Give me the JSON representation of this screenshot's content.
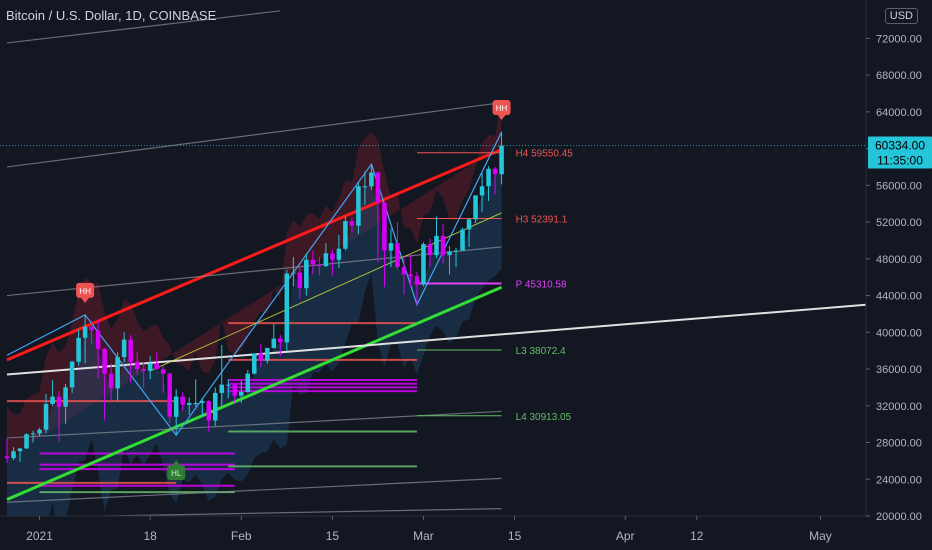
{
  "header": {
    "title": "Bitcoin / U.S. Dollar, 1D, COINBASE",
    "currency": "USD"
  },
  "price_tag": {
    "price": "60334.00",
    "countdown": "11:35:00"
  },
  "colors": {
    "bg": "#131722",
    "up": "#26c6da",
    "down": "#d500f9",
    "red_line": "#ff1a1a",
    "green_line": "#33dd33",
    "white_line": "#e0e0e0",
    "gray_line": "#8a8f99",
    "blue_line": "#42a5f5",
    "yellow_line": "#cddc39",
    "axis_text": "#b2b5be",
    "tag_bg": "#26c6da"
  },
  "markers": [
    {
      "label": "HH",
      "date": "2021-01-08",
      "kind": "high"
    },
    {
      "label": "HH",
      "date": "2021-03-13",
      "kind": "high"
    },
    {
      "label": "HL",
      "date": "2021-01-22",
      "kind": "low"
    }
  ],
  "chart_data": {
    "type": "candlestick",
    "title": "Bitcoin / U.S. Dollar, 1D, COINBASE",
    "x_range": [
      "2020-12-27",
      "2021-05-08"
    ],
    "ylim": [
      20000,
      74000
    ],
    "y_ticks": [
      20000,
      24000,
      28000,
      32000,
      36000,
      40000,
      44000,
      48000,
      52000,
      56000,
      60000,
      64000,
      68000,
      72000
    ],
    "y_tick_labels": [
      "20000.00",
      "24000.00",
      "28000.00",
      "32000.00",
      "36000.00",
      "40000.00",
      "44000.00",
      "48000.00",
      "52000.00",
      "56000.00",
      "60000.00",
      "64000.00",
      "68000.00",
      "72000.00"
    ],
    "x_ticks": [
      {
        "date": "2021-01-01",
        "label": "2021"
      },
      {
        "date": "2021-01-18",
        "label": "18"
      },
      {
        "date": "2021-02-01",
        "label": "Feb"
      },
      {
        "date": "2021-02-15",
        "label": "15"
      },
      {
        "date": "2021-03-01",
        "label": "Mar"
      },
      {
        "date": "2021-03-15",
        "label": "15"
      },
      {
        "date": "2021-04-01",
        "label": "Apr"
      },
      {
        "date": "2021-04-12",
        "label": "12"
      },
      {
        "date": "2021-05-01",
        "label": "May"
      }
    ],
    "last_price": 60334.0,
    "candles": [
      [
        "2020-12-27",
        26500,
        28400,
        25800,
        26300
      ],
      [
        "2020-12-28",
        26300,
        27500,
        26100,
        27050
      ],
      [
        "2020-12-29",
        27050,
        27400,
        25900,
        27350
      ],
      [
        "2020-12-30",
        27350,
        28990,
        27300,
        28900
      ],
      [
        "2020-12-31",
        28900,
        29300,
        28000,
        29000
      ],
      [
        "2021-01-01",
        29000,
        29600,
        28700,
        29400
      ],
      [
        "2021-01-02",
        29400,
        33300,
        29000,
        32200
      ],
      [
        "2021-01-03",
        32200,
        34800,
        32000,
        33000
      ],
      [
        "2021-01-04",
        33000,
        33600,
        28100,
        31900
      ],
      [
        "2021-01-05",
        31900,
        34400,
        30000,
        34000
      ],
      [
        "2021-01-06",
        34000,
        36900,
        33400,
        36800
      ],
      [
        "2021-01-07",
        36800,
        40300,
        36400,
        39400
      ],
      [
        "2021-01-08",
        39400,
        41900,
        36600,
        40600
      ],
      [
        "2021-01-09",
        40600,
        41300,
        38700,
        40200
      ],
      [
        "2021-01-10",
        40200,
        41400,
        35000,
        38200
      ],
      [
        "2021-01-11",
        38200,
        38300,
        30400,
        35500
      ],
      [
        "2021-01-12",
        35500,
        36600,
        32600,
        33900
      ],
      [
        "2021-01-13",
        33900,
        37800,
        32500,
        37300
      ],
      [
        "2021-01-14",
        37300,
        40000,
        36700,
        39200
      ],
      [
        "2021-01-15",
        39200,
        39700,
        34500,
        36800
      ],
      [
        "2021-01-16",
        36800,
        37900,
        35400,
        36000
      ],
      [
        "2021-01-17",
        36000,
        36800,
        33900,
        35800
      ],
      [
        "2021-01-18",
        35800,
        37400,
        34900,
        36600
      ],
      [
        "2021-01-19",
        36600,
        37800,
        35900,
        36000
      ],
      [
        "2021-01-20",
        36000,
        36400,
        33400,
        35500
      ],
      [
        "2021-01-21",
        35500,
        35600,
        30100,
        30800
      ],
      [
        "2021-01-22",
        30800,
        33800,
        28800,
        33000
      ],
      [
        "2021-01-23",
        33000,
        33500,
        31400,
        32100
      ],
      [
        "2021-01-24",
        32100,
        32900,
        31000,
        32300
      ],
      [
        "2021-01-25",
        32300,
        34900,
        31900,
        32300
      ],
      [
        "2021-01-26",
        32300,
        32800,
        30800,
        32500
      ],
      [
        "2021-01-27",
        32500,
        32600,
        29200,
        30400
      ],
      [
        "2021-01-28",
        30400,
        34000,
        29800,
        33400
      ],
      [
        "2021-01-29",
        33400,
        38600,
        31900,
        34300
      ],
      [
        "2021-01-30",
        34300,
        34900,
        32800,
        34300
      ],
      [
        "2021-01-31",
        34300,
        34300,
        32200,
        33100
      ],
      [
        "2021-02-01",
        33100,
        34700,
        32300,
        33500
      ],
      [
        "2021-02-02",
        33500,
        35900,
        33400,
        35500
      ],
      [
        "2021-02-03",
        35500,
        37700,
        35400,
        37700
      ],
      [
        "2021-02-04",
        37700,
        38700,
        36200,
        36900
      ],
      [
        "2021-02-05",
        36900,
        38300,
        36600,
        38300
      ],
      [
        "2021-02-06",
        38300,
        40900,
        38200,
        39300
      ],
      [
        "2021-02-07",
        39300,
        39700,
        37400,
        38900
      ],
      [
        "2021-02-08",
        38900,
        46800,
        38000,
        46400
      ],
      [
        "2021-02-09",
        46400,
        48200,
        45000,
        46500
      ],
      [
        "2021-02-10",
        46500,
        47300,
        43700,
        44800
      ],
      [
        "2021-02-11",
        44800,
        48600,
        44000,
        47900
      ],
      [
        "2021-02-12",
        47900,
        48900,
        46300,
        47400
      ],
      [
        "2021-02-13",
        47400,
        48200,
        46200,
        47200
      ],
      [
        "2021-02-14",
        47200,
        49700,
        47100,
        48600
      ],
      [
        "2021-02-15",
        48600,
        49000,
        46200,
        47900
      ],
      [
        "2021-02-16",
        47900,
        50600,
        47000,
        49100
      ],
      [
        "2021-02-17",
        49100,
        52600,
        48900,
        52100
      ],
      [
        "2021-02-18",
        52100,
        52500,
        50900,
        51600
      ],
      [
        "2021-02-19",
        51600,
        56300,
        50700,
        55900
      ],
      [
        "2021-02-20",
        55900,
        57500,
        53900,
        55900
      ],
      [
        "2021-02-21",
        55900,
        58300,
        55500,
        57400
      ],
      [
        "2021-02-22",
        57400,
        57500,
        47600,
        54100
      ],
      [
        "2021-02-23",
        54100,
        54200,
        44900,
        48900
      ],
      [
        "2021-02-24",
        48900,
        51300,
        47100,
        49700
      ],
      [
        "2021-02-25",
        49700,
        52000,
        46800,
        47100
      ],
      [
        "2021-02-26",
        47100,
        48300,
        44100,
        46300
      ],
      [
        "2021-02-27",
        46300,
        48400,
        45000,
        46100
      ],
      [
        "2021-02-28",
        46100,
        46600,
        43000,
        45200
      ],
      [
        "2021-03-01",
        45200,
        49800,
        45000,
        49600
      ],
      [
        "2021-03-02",
        49600,
        50200,
        47100,
        48400
      ],
      [
        "2021-03-03",
        48400,
        52600,
        48100,
        50500
      ],
      [
        "2021-03-04",
        50500,
        51800,
        47500,
        48400
      ],
      [
        "2021-03-05",
        48400,
        49400,
        46300,
        48800
      ],
      [
        "2021-03-06",
        48800,
        49200,
        47100,
        48900
      ],
      [
        "2021-03-07",
        48900,
        51400,
        48900,
        51200
      ],
      [
        "2021-03-08",
        51200,
        52400,
        49300,
        52300
      ],
      [
        "2021-03-09",
        52300,
        54900,
        51900,
        54900
      ],
      [
        "2021-03-10",
        54900,
        57400,
        53100,
        55900
      ],
      [
        "2021-03-11",
        55900,
        58100,
        54300,
        57800
      ],
      [
        "2021-03-12",
        57800,
        58000,
        55000,
        57200
      ],
      [
        "2021-03-13",
        57200,
        61800,
        56100,
        60334
      ]
    ],
    "levels": [
      {
        "label": "H4 59550.45",
        "value": 59550.45,
        "color": "#ef5350"
      },
      {
        "label": "H3 52391.1",
        "value": 52391.1,
        "color": "#ef5350"
      },
      {
        "label": "P 45310.58",
        "value": 45310.58,
        "color": "#e040fb"
      },
      {
        "label": "L3 38072.4",
        "value": 38072.4,
        "color": "#66bb6a"
      },
      {
        "label": "L4 30913.05",
        "value": 30913.05,
        "color": "#66bb6a"
      }
    ],
    "trendlines": [
      {
        "kind": "red",
        "from": [
          "2020-12-27",
          37000
        ],
        "to": [
          "2021-03-13",
          59900
        ]
      },
      {
        "kind": "green",
        "from": [
          "2020-12-27",
          21800
        ],
        "to": [
          "2021-03-13",
          44900
        ]
      },
      {
        "kind": "white",
        "from": [
          "2020-12-27",
          35400
        ],
        "to": [
          "2021-05-08",
          43000
        ]
      },
      {
        "kind": "gray",
        "from": [
          "2020-12-27",
          58000
        ],
        "to": [
          "2021-03-13",
          65000
        ]
      },
      {
        "kind": "gray",
        "from": [
          "2020-12-27",
          44000
        ],
        "to": [
          "2021-03-13",
          49300
        ]
      },
      {
        "kind": "gray",
        "from": [
          "2020-12-27",
          28500
        ],
        "to": [
          "2021-03-13",
          31400
        ]
      },
      {
        "kind": "gray",
        "from": [
          "2020-12-27",
          21500
        ],
        "to": [
          "2021-03-13",
          24100
        ]
      },
      {
        "kind": "gray",
        "from": [
          "2020-12-27",
          19800
        ],
        "to": [
          "2021-03-13",
          20800
        ]
      },
      {
        "kind": "gray",
        "from": [
          "2020-12-27",
          71500
        ],
        "to": [
          "2021-02-07",
          75000
        ]
      }
    ],
    "zigzag": [
      [
        "2020-12-27",
        37500
      ],
      [
        "2021-01-08",
        41900
      ],
      [
        "2021-01-22",
        28800
      ],
      [
        "2021-02-21",
        58300
      ],
      [
        "2021-02-28",
        43000
      ],
      [
        "2021-03-13",
        61800
      ]
    ],
    "level_bands": [
      {
        "from": "2021-01-01",
        "to": "2021-01-31",
        "value": 26800,
        "color": "#d500f9"
      },
      {
        "from": "2021-01-01",
        "to": "2021-01-31",
        "value": 25600,
        "color": "#d500f9"
      },
      {
        "from": "2021-01-01",
        "to": "2021-01-31",
        "value": 25100,
        "color": "#d500f9"
      },
      {
        "from": "2021-01-01",
        "to": "2021-01-31",
        "value": 23300,
        "color": "#d500f9"
      },
      {
        "from": "2021-01-01",
        "to": "2021-01-31",
        "value": 22600,
        "color": "#66bb6a"
      },
      {
        "from": "2021-01-30",
        "to": "2021-02-28",
        "value": 34800,
        "color": "#d500f9"
      },
      {
        "from": "2021-01-30",
        "to": "2021-02-28",
        "value": 34400,
        "color": "#d500f9"
      },
      {
        "from": "2021-01-30",
        "to": "2021-02-28",
        "value": 34000,
        "color": "#d500f9"
      },
      {
        "from": "2021-01-30",
        "to": "2021-02-28",
        "value": 33600,
        "color": "#d500f9"
      },
      {
        "from": "2021-01-30",
        "to": "2021-02-28",
        "value": 37000,
        "color": "#ef5350"
      },
      {
        "from": "2021-01-30",
        "to": "2021-02-28",
        "value": 41000,
        "color": "#ef5350"
      },
      {
        "from": "2021-01-30",
        "to": "2021-02-28",
        "value": 29200,
        "color": "#66bb6a"
      },
      {
        "from": "2021-01-30",
        "to": "2021-02-28",
        "value": 25400,
        "color": "#66bb6a"
      },
      {
        "from": "2020-12-27",
        "to": "2021-01-22",
        "value": 32500,
        "color": "#ef5350"
      },
      {
        "from": "2020-12-27",
        "to": "2021-01-22",
        "value": 23600,
        "color": "#ef5350"
      }
    ]
  }
}
